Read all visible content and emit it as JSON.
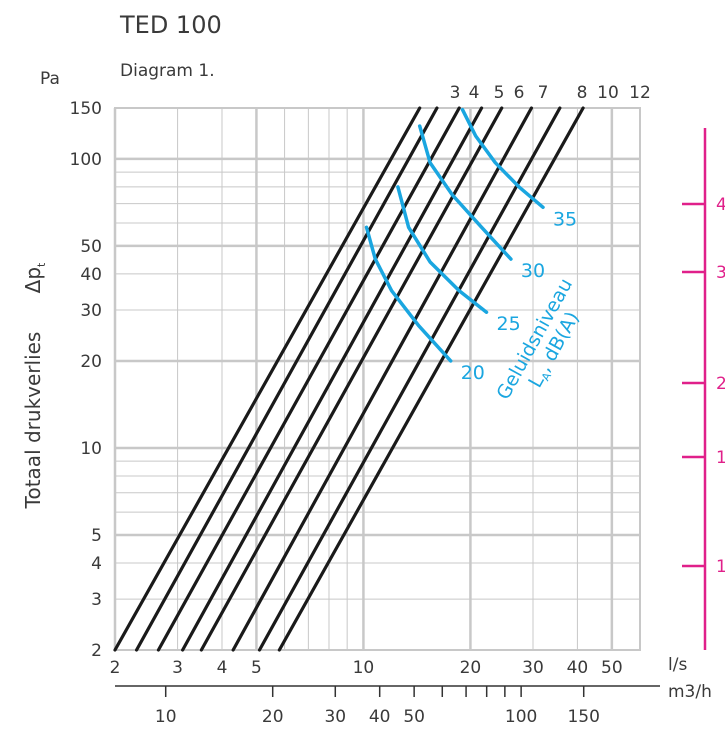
{
  "title": "TED 100",
  "subtitle": "Diagram 1.",
  "chart_data": {
    "type": "line",
    "y_unit": "Pa",
    "ylabel": "Totaal drukverlies",
    "ylabel_symbol": "Δp",
    "ylabel_symbol_sub": "t",
    "yscale": "log",
    "xscale": "log",
    "ylim": [
      2,
      150
    ],
    "xlim": [
      2,
      60
    ],
    "y_ticks": [
      "2",
      "3",
      "4",
      "5",
      "10",
      "20",
      "30",
      "40",
      "50",
      "100",
      "150"
    ],
    "x_unit": "l/s",
    "x_ticks": [
      "2",
      "3",
      "4",
      "5",
      "10",
      "20",
      "30",
      "40",
      "50"
    ],
    "x2_unit": "m3/h",
    "x2_ticks": [
      "10",
      "20",
      "30",
      "40",
      "50",
      "100",
      "150"
    ],
    "grid": true,
    "series": [
      {
        "name": "3",
        "points": [
          [
            2.0,
            2
          ],
          [
            14.4,
            150
          ]
        ]
      },
      {
        "name": "4",
        "points": [
          [
            2.3,
            2
          ],
          [
            16.1,
            150
          ]
        ]
      },
      {
        "name": "5",
        "points": [
          [
            2.65,
            2
          ],
          [
            18.6,
            150
          ]
        ]
      },
      {
        "name": "6",
        "points": [
          [
            3.1,
            2
          ],
          [
            21.5,
            150
          ]
        ]
      },
      {
        "name": "7",
        "points": [
          [
            3.5,
            2
          ],
          [
            24.5,
            150
          ]
        ]
      },
      {
        "name": "8",
        "points": [
          [
            4.3,
            2
          ],
          [
            29.7,
            150
          ]
        ]
      },
      {
        "name": "10",
        "points": [
          [
            5.1,
            2
          ],
          [
            35.7,
            150
          ]
        ]
      },
      {
        "name": "12",
        "points": [
          [
            5.8,
            2
          ],
          [
            41.5,
            150
          ]
        ]
      }
    ],
    "noise_curves": {
      "label": "Geluidsniveau",
      "label_sub": "L",
      "label_sub_index": "A",
      "label_unit": "dB(A)",
      "curves": [
        {
          "level": "20",
          "points": [
            [
              10.2,
              58
            ],
            [
              10.8,
              45
            ],
            [
              12.0,
              35
            ],
            [
              14.3,
              26.5
            ],
            [
              17.6,
              20
            ]
          ]
        },
        {
          "level": "25",
          "points": [
            [
              12.5,
              80
            ],
            [
              13.4,
              58
            ],
            [
              15.4,
              44
            ],
            [
              18.6,
              35
            ],
            [
              22.2,
              29.5
            ]
          ]
        },
        {
          "level": "30",
          "points": [
            [
              14.4,
              130
            ],
            [
              15.4,
              97
            ],
            [
              17.8,
              75
            ],
            [
              21.5,
              58
            ],
            [
              26.0,
              45
            ]
          ]
        },
        {
          "level": "35",
          "points": [
            [
              19.0,
              148
            ],
            [
              20.7,
              120
            ],
            [
              23.5,
              97
            ],
            [
              27.4,
              80
            ],
            [
              32.0,
              68
            ]
          ]
        }
      ]
    },
    "right_axis_color": "#e0208a",
    "right_axis_ticks": [
      "4",
      "3",
      "2",
      "1",
      "1"
    ],
    "colors": {
      "lines": "#1a1a1a",
      "noise": "#1aa6e0",
      "grid": "#c8c8c8",
      "right_axis": "#e0208a"
    }
  }
}
